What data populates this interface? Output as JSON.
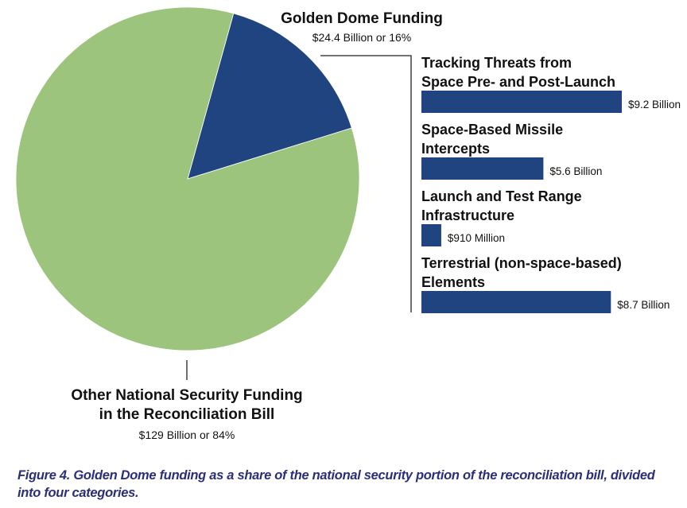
{
  "chart_data": [
    {
      "type": "pie",
      "slices": [
        {
          "label_lines": [
            "Golden Dome Funding"
          ],
          "value_text": "$24.4 Billion or 16%",
          "value": 24.4,
          "percent": 16,
          "unit": "Billion",
          "color": "#1f4480"
        },
        {
          "label_lines": [
            "Other National Security Funding",
            "in the Reconciliation Bill"
          ],
          "value_text": "$129 Billion or 84%",
          "value": 129,
          "percent": 84,
          "unit": "Billion",
          "color": "#9cc47c"
        }
      ]
    },
    {
      "type": "bar",
      "orientation": "horizontal",
      "unit": "Billion",
      "bar_color": "#1f4480",
      "categories": [
        {
          "label_lines": [
            "Tracking Threats from",
            "Space Pre- and Post-Launch"
          ],
          "value": 9.2,
          "value_text": "$9.2 Billion"
        },
        {
          "label_lines": [
            "Space-Based Missile",
            "Intercepts"
          ],
          "value": 5.6,
          "value_text": "$5.6 Billion"
        },
        {
          "label_lines": [
            "Launch and Test Range",
            "Infrastructure"
          ],
          "value": 0.91,
          "value_text": "$910 Million"
        },
        {
          "label_lines": [
            "Terrestrial (non-space-based)",
            "Elements"
          ],
          "value": 8.7,
          "value_text": "$8.7 Billion"
        }
      ]
    }
  ],
  "caption": "Figure 4. Golden Dome funding as a share of the national security portion of the reconciliation bill, divided into four categories."
}
